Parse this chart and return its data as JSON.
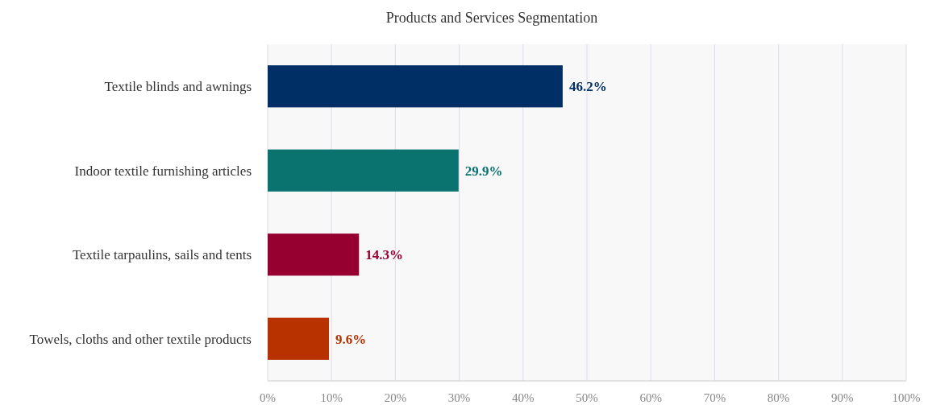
{
  "chart_data": {
    "type": "bar",
    "orientation": "horizontal",
    "title": "Products and Services Segmentation",
    "categories": [
      "Textile blinds and awnings",
      "Indoor textile furnishing articles",
      "Textile tarpaulins, sails and tents",
      "Towels, cloths and other textile products"
    ],
    "values": [
      46.2,
      29.9,
      14.3,
      9.6
    ],
    "colors": [
      "#002f65",
      "#0a7370",
      "#960030",
      "#b83200"
    ],
    "value_labels": [
      "46.2%",
      "29.9%",
      "14.3%",
      "9.6%"
    ],
    "xlim": [
      0,
      100
    ],
    "xticks": [
      {
        "value": 0,
        "label": "0%"
      },
      {
        "value": 10,
        "label": "10%"
      },
      {
        "value": 20,
        "label": "20%"
      },
      {
        "value": 30,
        "label": "30%"
      },
      {
        "value": 40,
        "label": "40%"
      },
      {
        "value": 50,
        "label": "50%"
      },
      {
        "value": 60,
        "label": "60%"
      },
      {
        "value": 70,
        "label": "70%"
      },
      {
        "value": 80,
        "label": "80%"
      },
      {
        "value": 90,
        "label": "90%"
      },
      {
        "value": 100,
        "label": "100%"
      }
    ],
    "grid": "x"
  }
}
